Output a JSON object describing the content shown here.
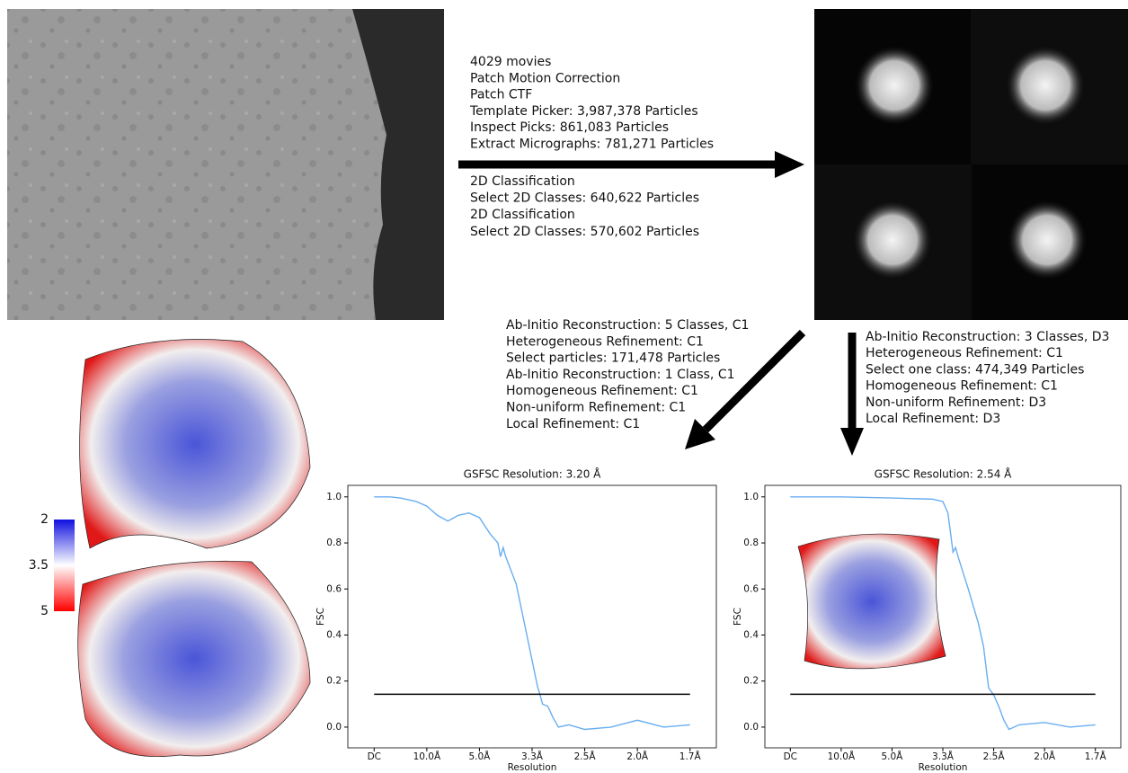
{
  "workflow": {
    "steps_top": [
      "4029 movies",
      "Patch Motion Correction",
      "Patch CTF",
      "Template Picker: 3,987,378 Particles",
      "Inspect Picks: 861,083 Particles",
      "Extract Micrographs: 781,271 Particles"
    ],
    "steps_2d": [
      "2D Classification",
      "Select 2D Classes: 640,622 Particles",
      "2D Classification",
      "Select 2D Classes: 570,602 Particles"
    ],
    "branch_left": [
      "Ab-Initio Reconstruction: 5 Classes, C1",
      "Heterogeneous Refinement: C1",
      "Select particles: 171,478 Particles",
      "Ab-Initio Reconstruction: 1 Class, C1",
      "Homogeneous Refinement: C1",
      "Non-uniform Refinement: C1",
      "Local Refinement: C1"
    ],
    "branch_right": [
      "Ab-Initio Reconstruction: 3 Classes, D3",
      "Heterogeneous Refinement: C1",
      "Select one class: 474,349 Particles",
      "Homogeneous Refinement: C1",
      "Non-uniform Refinement: D3",
      "Local Refinement: D3"
    ]
  },
  "colorbar": {
    "ticks": [
      2,
      3.5,
      5
    ]
  },
  "chart_data": [
    {
      "type": "line",
      "title": "GSFSC Resolution: 3.20 Å",
      "x_label": "Resolution",
      "y_label": "FSC",
      "xlim": [
        -0.05,
        0.65
      ],
      "ylim": [
        -0.09,
        1.05
      ],
      "xticks": [
        {
          "value": 0,
          "label": "DC"
        },
        {
          "value": 0.1,
          "label": "10.0Å"
        },
        {
          "value": 0.2,
          "label": "5.0Å"
        },
        {
          "value": 0.3,
          "label": "3.3Å"
        },
        {
          "value": 0.4,
          "label": "2.5Å"
        },
        {
          "value": 0.5,
          "label": "2.0Å"
        },
        {
          "value": 0.6,
          "label": "1.7Å"
        }
      ],
      "yticks": [
        {
          "value": 0,
          "label": "0.0"
        },
        0.2,
        0.4,
        0.6,
        0.8,
        {
          "value": 1,
          "label": "1.0"
        }
      ],
      "series": [
        {
          "color": "#6aaef0",
          "x": [
            0,
            0.03,
            0.05,
            0.08,
            0.1,
            0.12,
            0.14,
            0.16,
            0.18,
            0.2,
            0.22,
            0.235,
            0.24,
            0.245,
            0.25,
            0.27,
            0.29,
            0.31,
            0.32,
            0.33,
            0.34,
            0.35,
            0.37,
            0.4,
            0.45,
            0.5,
            0.55,
            0.6
          ],
          "values": [
            1.0,
            1.0,
            0.995,
            0.98,
            0.96,
            0.92,
            0.895,
            0.92,
            0.93,
            0.91,
            0.84,
            0.8,
            0.74,
            0.78,
            0.74,
            0.62,
            0.4,
            0.18,
            0.1,
            0.09,
            0.04,
            0.0,
            0.01,
            -0.01,
            0.0,
            0.03,
            0.0,
            0.01
          ]
        },
        {
          "color": "#000000",
          "x": [
            0,
            0.6
          ],
          "values": [
            0.143,
            0.143
          ]
        }
      ]
    },
    {
      "type": "line",
      "title": "GSFSC Resolution: 2.54 Å",
      "x_label": "Resolution",
      "y_label": "FSC",
      "xlim": [
        -0.05,
        0.65
      ],
      "ylim": [
        -0.09,
        1.05
      ],
      "xticks": [
        {
          "value": 0,
          "label": "DC"
        },
        {
          "value": 0.1,
          "label": "10.0Å"
        },
        {
          "value": 0.2,
          "label": "5.0Å"
        },
        {
          "value": 0.3,
          "label": "3.3Å"
        },
        {
          "value": 0.4,
          "label": "2.5Å"
        },
        {
          "value": 0.5,
          "label": "2.0Å"
        },
        {
          "value": 0.6,
          "label": "1.7Å"
        }
      ],
      "yticks": [
        {
          "value": 0,
          "label": "0.0"
        },
        0.2,
        0.4,
        0.6,
        0.8,
        {
          "value": 1,
          "label": "1.0"
        }
      ],
      "series": [
        {
          "color": "#6aaef0",
          "x": [
            0,
            0.1,
            0.2,
            0.28,
            0.3,
            0.31,
            0.32,
            0.325,
            0.33,
            0.35,
            0.37,
            0.38,
            0.39,
            0.4,
            0.41,
            0.42,
            0.43,
            0.45,
            0.5,
            0.55,
            0.6
          ],
          "values": [
            1.0,
            1.0,
            0.995,
            0.99,
            0.98,
            0.93,
            0.76,
            0.78,
            0.74,
            0.6,
            0.45,
            0.35,
            0.17,
            0.14,
            0.09,
            0.03,
            -0.01,
            0.01,
            0.02,
            0.0,
            0.01
          ]
        },
        {
          "color": "#000000",
          "x": [
            0,
            0.6
          ],
          "values": [
            0.143,
            0.143
          ]
        }
      ]
    }
  ]
}
